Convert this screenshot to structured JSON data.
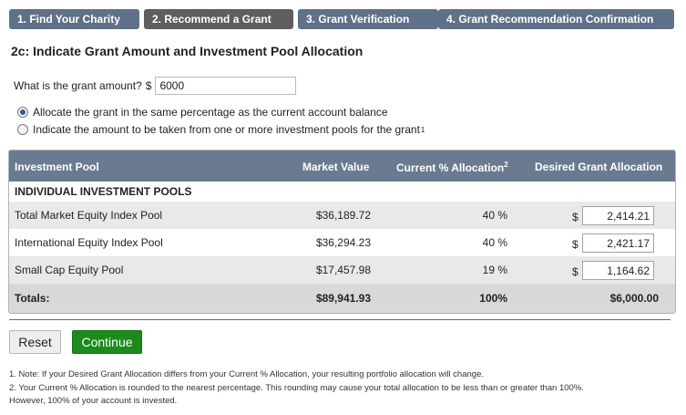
{
  "tabs": [
    {
      "label": "1. Find Your Charity",
      "active": false
    },
    {
      "label": "2. Recommend a Grant",
      "active": true
    },
    {
      "label": "3. Grant Verification",
      "active": false
    },
    {
      "label": "4. Grant Recommendation Confirmation",
      "active": false
    }
  ],
  "heading": "2c: Indicate Grant Amount and Investment Pool Allocation",
  "amount": {
    "label": "What is the grant amount?",
    "currency": "$",
    "value": "6000"
  },
  "options": [
    {
      "label": "Allocate the grant in the same percentage as the current account balance",
      "checked": true,
      "footnote": ""
    },
    {
      "label": "Indicate the amount to be taken from one or more investment pools for the grant",
      "checked": false,
      "footnote": "1"
    }
  ],
  "table": {
    "headers": {
      "pool": "Investment Pool",
      "market": "Market Value",
      "current": "Current % Allocation",
      "current_footnote": "2",
      "desired": "Desired Grant Allocation"
    },
    "group_label": "INDIVIDUAL INVESTMENT POOLS",
    "rows": [
      {
        "name": "Total Market Equity Index Pool",
        "market": "$36,189.72",
        "pct": "40 %",
        "currency": "$",
        "allocation": "2,414.21"
      },
      {
        "name": "International Equity Index Pool",
        "market": "$36,294.23",
        "pct": "40 %",
        "currency": "$",
        "allocation": "2,421.17"
      },
      {
        "name": "Small Cap Equity Pool",
        "market": "$17,457.98",
        "pct": "19 %",
        "currency": "$",
        "allocation": "1,164.62"
      }
    ],
    "totals": {
      "label": "Totals:",
      "market": "$89,941.93",
      "pct": "100%",
      "grant": "$6,000.00"
    }
  },
  "buttons": {
    "reset": "Reset",
    "continue": "Continue"
  },
  "notes": {
    "note1": "1. Note: If your Desired Grant Allocation differs from your Current % Allocation, your resulting portfolio allocation will change.",
    "note2a": "2. Your Current % Allocation is rounded to the nearest percentage. This rounding may cause your total allocation to be less than or greater than 100%.",
    "note2b": "However, 100% of your account is invested."
  },
  "colors": {
    "tab_inactive": "#5f7189",
    "tab_active": "#5e5e5e",
    "table_header": "#6a7b91",
    "continue_button": "#1d8a1d"
  }
}
